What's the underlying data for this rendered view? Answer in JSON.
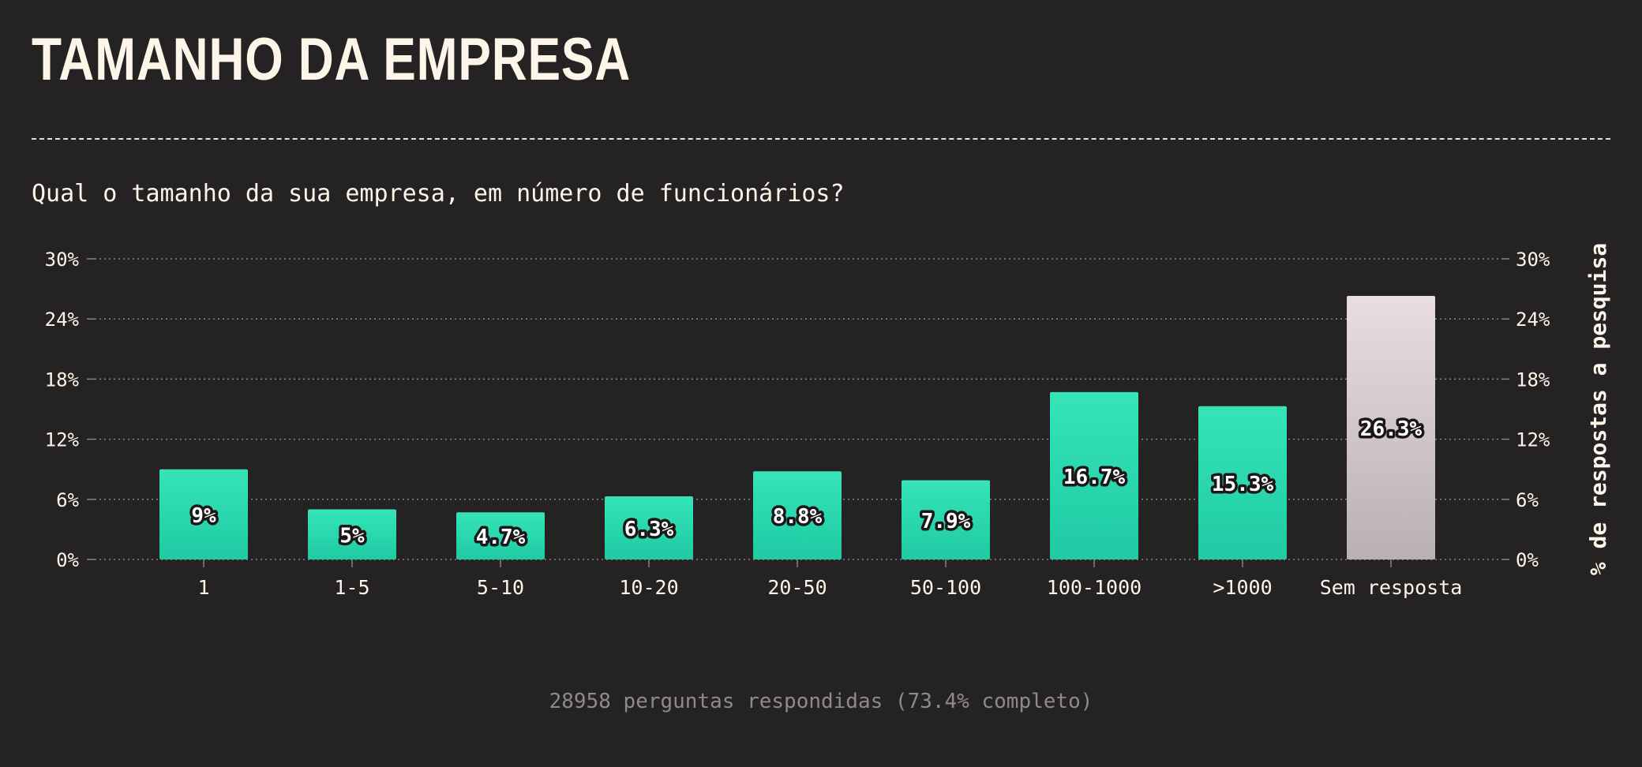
{
  "header": {
    "title": "TAMANHO DA EMPRESA",
    "question": "Qual o tamanho da sua empresa, em número de funcionários?"
  },
  "footer": {
    "note": "28958 perguntas respondidas (73.4% completo)"
  },
  "colors": {
    "background": "#252223",
    "bar_top": "#36e4b8",
    "bar_bottom": "#1fcaa4",
    "no_answer_top": "#e9dde2",
    "no_answer_bottom": "#b8b0b4",
    "text": "#fdf5e8",
    "grid": "#8a8584"
  },
  "chart_data": {
    "type": "bar",
    "categories": [
      "1",
      "1-5",
      "5-10",
      "10-20",
      "20-50",
      "50-100",
      "100-1000",
      ">1000",
      "Sem resposta"
    ],
    "values": [
      9,
      5,
      4.7,
      6.3,
      8.8,
      7.9,
      16.7,
      15.3,
      26.3
    ],
    "value_labels": [
      "9%",
      "5%",
      "4.7%",
      "6.3%",
      "8.8%",
      "7.9%",
      "16.7%",
      "15.3%",
      "26.3%"
    ],
    "yticks": [
      "0%",
      "6%",
      "12%",
      "18%",
      "24%",
      "30%"
    ],
    "ytick_values": [
      0,
      6,
      12,
      18,
      24,
      30
    ],
    "ylim": [
      0,
      30
    ],
    "ylabel": "% de respostas a pesquisa",
    "xlabel": "",
    "grid": true,
    "highlight_category": "Sem resposta"
  }
}
